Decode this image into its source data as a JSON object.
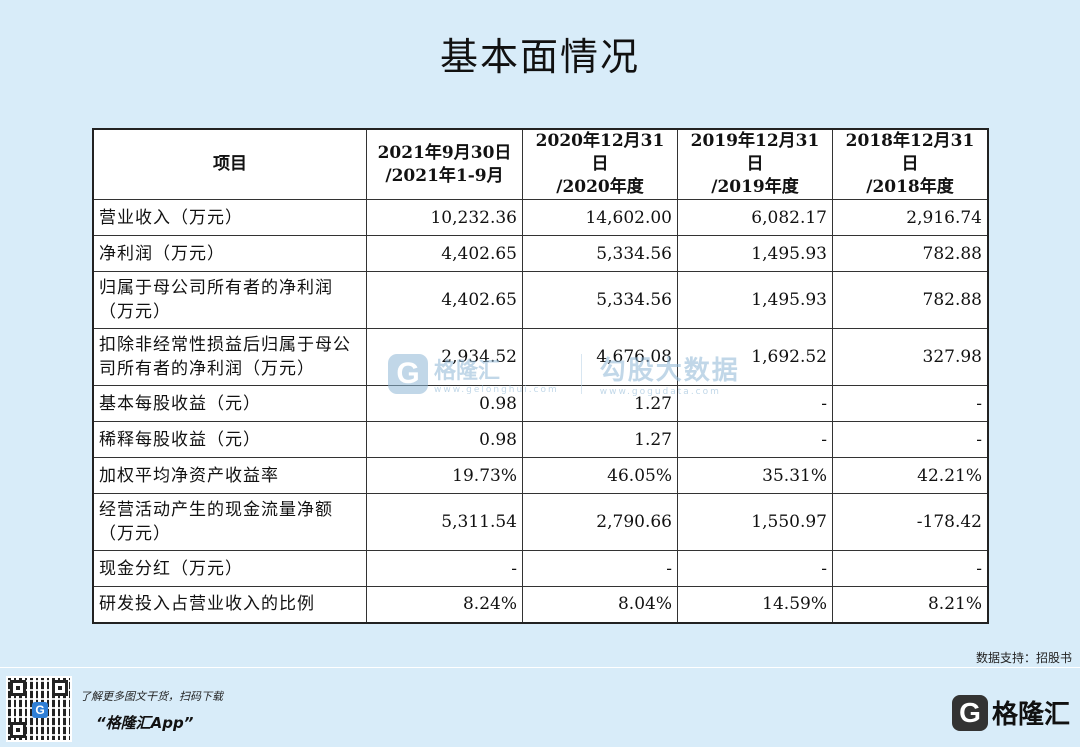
{
  "title": "基本面情况",
  "table": {
    "header": {
      "item": "项目",
      "col1_l1": "2021年9月30日",
      "col1_l2": "/2021年1-9月",
      "col2_l1": "2020年12月31日",
      "col2_l2": "/2020年度",
      "col3_l1": "2019年12月31日",
      "col3_l2": "/2019年度",
      "col4_l1": "2018年12月31日",
      "col4_l2": "/2018年度"
    },
    "rows": [
      {
        "label": "营业收入（万元）",
        "v": [
          "10,232.36",
          "14,602.00",
          "6,082.17",
          "2,916.74"
        ]
      },
      {
        "label": "净利润（万元）",
        "v": [
          "4,402.65",
          "5,334.56",
          "1,495.93",
          "782.88"
        ]
      },
      {
        "label": "归属于母公司所有者的净利润（万元）",
        "v": [
          "4,402.65",
          "5,334.56",
          "1,495.93",
          "782.88"
        ]
      },
      {
        "label": "扣除非经常性损益后归属于母公司所有者的净利润（万元）",
        "v": [
          "2,934.52",
          "4,676.08",
          "1,692.52",
          "327.98"
        ]
      },
      {
        "label": "基本每股收益（元）",
        "v": [
          "0.98",
          "1.27",
          "-",
          "-"
        ]
      },
      {
        "label": "稀释每股收益（元）",
        "v": [
          "0.98",
          "1.27",
          "-",
          "-"
        ]
      },
      {
        "label": "加权平均净资产收益率",
        "v": [
          "19.73%",
          "46.05%",
          "35.31%",
          "42.21%"
        ]
      },
      {
        "label": "经营活动产生的现金流量净额（万元）",
        "v": [
          "5,311.54",
          "2,790.66",
          "1,550.97",
          "-178.42"
        ]
      },
      {
        "label": "现金分红（万元）",
        "v": [
          "-",
          "-",
          "-",
          "-"
        ]
      },
      {
        "label": "研发投入占营业收入的比例",
        "v": [
          "8.24%",
          "8.04%",
          "14.59%",
          "8.21%"
        ]
      }
    ]
  },
  "watermark": {
    "g": "G",
    "name1": "格隆汇",
    "sub1": "www.gelonghui.com",
    "name2": "勾股大数据",
    "sub2": "www.gogudata.com"
  },
  "source": "数据支持：招股书",
  "footer": {
    "qr_badge": "G",
    "promo_line1": "了解更多图文干货，扫码下载",
    "promo_line2": "“格隆汇App”",
    "logo_g": "G",
    "logo_text": "格隆汇"
  },
  "colors": {
    "background": "#d8ecf9",
    "table_bg": "#ffffff",
    "watermark": "#8fb8d6"
  }
}
